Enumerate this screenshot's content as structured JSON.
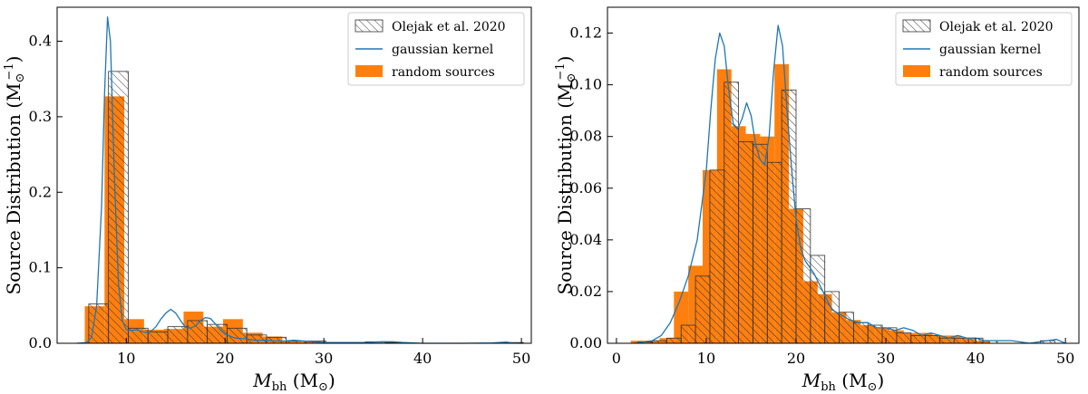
{
  "chart_data": [
    {
      "type": "bar",
      "ylabel": "Source Distribution (M",
      "ylabel_sup": "−1",
      "ylabel_sub": "⊙",
      "xlabel_main": "M",
      "xlabel_sub": "bh",
      "xlabel_unit": "(M",
      "xlabel_unit_sub": "⊙",
      "xlim": [
        3,
        51
      ],
      "ylim": [
        0,
        0.445
      ],
      "xticks": [
        10,
        20,
        30,
        40,
        50
      ],
      "yticks": [
        0.0,
        0.1,
        0.2,
        0.3,
        0.4
      ],
      "ytick_labels": [
        "0.0",
        "0.1",
        "0.2",
        "0.3",
        "0.4"
      ],
      "legend_position": "top-right",
      "legend": [
        "Olejak et al. 2020",
        "gaussian kernel",
        "random sources"
      ],
      "bin_width": 2.0,
      "random_sources": {
        "name": "random sources",
        "color": "#ff7f0e",
        "x_left": [
          5.8,
          7.8,
          9.8,
          11.8,
          13.8,
          15.8,
          17.8,
          19.8,
          21.8,
          23.8,
          25.8,
          27.8,
          29.8,
          33.8,
          35.8,
          47.8
        ],
        "values": [
          0.049,
          0.327,
          0.032,
          0.018,
          0.019,
          0.042,
          0.022,
          0.032,
          0.014,
          0.009,
          0.003,
          0.002,
          0.001,
          0.001,
          0.001,
          0.001
        ]
      },
      "olejak": {
        "name": "Olejak et al. 2020",
        "x_left": [
          6.2,
          8.2,
          10.2,
          12.2,
          14.2,
          16.2,
          18.2,
          20.2,
          22.2,
          24.2,
          26.2,
          28.2,
          32.2,
          34.2,
          36.2,
          48.2
        ],
        "values": [
          0.052,
          0.36,
          0.02,
          0.015,
          0.022,
          0.03,
          0.025,
          0.02,
          0.011,
          0.008,
          0.003,
          0.003,
          0.001,
          0.002,
          0.001,
          0.001
        ]
      },
      "kde": {
        "name": "gaussian kernel",
        "color": "#1f77b4",
        "x": [
          5,
          6,
          6.5,
          7,
          7.5,
          7.8,
          8.1,
          8.4,
          8.8,
          9.2,
          9.6,
          10,
          10.5,
          11,
          11.5,
          12,
          12.5,
          13,
          13.5,
          14,
          14.5,
          15,
          15.5,
          16,
          16.5,
          17,
          17.5,
          18,
          18.5,
          19,
          19.5,
          20,
          21,
          22,
          23,
          24,
          25,
          26,
          27,
          28,
          29,
          30,
          32,
          34,
          36,
          37,
          38,
          40,
          44,
          47,
          48.5,
          49,
          50
        ],
        "values": [
          0.0,
          0.001,
          0.008,
          0.05,
          0.18,
          0.33,
          0.432,
          0.4,
          0.22,
          0.08,
          0.03,
          0.018,
          0.017,
          0.018,
          0.016,
          0.014,
          0.016,
          0.022,
          0.032,
          0.04,
          0.045,
          0.04,
          0.03,
          0.021,
          0.02,
          0.023,
          0.03,
          0.034,
          0.033,
          0.026,
          0.018,
          0.012,
          0.007,
          0.006,
          0.004,
          0.004,
          0.003,
          0.003,
          0.004,
          0.003,
          0.002,
          0.001,
          0.001,
          0.001,
          0.002,
          0.002,
          0.001,
          0.0,
          0.0,
          0.0005,
          0.0015,
          0.0005,
          0.0
        ]
      }
    },
    {
      "type": "bar",
      "ylabel": "Source Distribution (M",
      "ylabel_sup": "−1",
      "ylabel_sub": "⊙",
      "xlabel_main": "M",
      "xlabel_sub": "bh",
      "xlabel_unit": "(M",
      "xlabel_unit_sub": "⊙",
      "xlim": [
        -1,
        51.5
      ],
      "ylim": [
        0,
        0.13
      ],
      "xticks": [
        0,
        10,
        20,
        30,
        40,
        50
      ],
      "yticks": [
        0.0,
        0.02,
        0.04,
        0.06,
        0.08,
        0.1,
        0.12
      ],
      "ytick_labels": [
        "0.00",
        "0.02",
        "0.04",
        "0.06",
        "0.08",
        "0.10",
        "0.12"
      ],
      "legend_position": "top-right",
      "legend": [
        "Olejak et al. 2020",
        "gaussian kernel",
        "random sources"
      ],
      "bin_width": 1.6,
      "random_sources": {
        "name": "random sources",
        "color": "#ff7f0e",
        "x_left": [
          1.6,
          3.2,
          4.8,
          6.4,
          8.0,
          9.6,
          11.2,
          12.8,
          14.4,
          16.0,
          17.6,
          19.2,
          20.8,
          22.4,
          24.0,
          25.6,
          27.2,
          28.8,
          30.4,
          32.0,
          33.6,
          35.2,
          36.8,
          38.4,
          40.0
        ],
        "values": [
          0.001,
          0.001,
          0.002,
          0.02,
          0.03,
          0.067,
          0.106,
          0.084,
          0.081,
          0.08,
          0.108,
          0.052,
          0.024,
          0.019,
          0.012,
          0.009,
          0.007,
          0.006,
          0.005,
          0.004,
          0.004,
          0.003,
          0.003,
          0.002,
          0.001
        ]
      },
      "olejak": {
        "name": "Olejak et al. 2020",
        "x_left": [
          2.4,
          4.0,
          5.6,
          7.2,
          8.8,
          10.4,
          12.0,
          13.6,
          15.2,
          16.8,
          18.4,
          20.0,
          21.6,
          23.2,
          24.8,
          26.4,
          28.0,
          29.6,
          31.2,
          32.8,
          34.4,
          36.0,
          37.6,
          39.2,
          40.8,
          47.2
        ],
        "values": [
          0.0005,
          0.001,
          0.002,
          0.007,
          0.026,
          0.067,
          0.101,
          0.078,
          0.077,
          0.07,
          0.098,
          0.052,
          0.034,
          0.02,
          0.012,
          0.008,
          0.007,
          0.006,
          0.004,
          0.003,
          0.003,
          0.002,
          0.002,
          0.002,
          0.001,
          0.001
        ]
      },
      "kde": {
        "name": "gaussian kernel",
        "color": "#1f77b4",
        "x": [
          2,
          4,
          5,
          6,
          7,
          8,
          9,
          10,
          10.5,
          11,
          11.5,
          12,
          12.5,
          13,
          13.5,
          14,
          14.5,
          15,
          15.5,
          16,
          16.5,
          17,
          17.5,
          18,
          18.5,
          19,
          19.5,
          20,
          20.5,
          21,
          22,
          23,
          24,
          25,
          26,
          27,
          28,
          29,
          30,
          31,
          32,
          33,
          34,
          35,
          36,
          37,
          38,
          39,
          40,
          41,
          42,
          44,
          46,
          48,
          49,
          50
        ],
        "values": [
          0.0,
          0.001,
          0.003,
          0.008,
          0.016,
          0.026,
          0.04,
          0.067,
          0.09,
          0.11,
          0.12,
          0.115,
          0.098,
          0.085,
          0.083,
          0.087,
          0.093,
          0.088,
          0.077,
          0.071,
          0.069,
          0.08,
          0.105,
          0.123,
          0.115,
          0.09,
          0.068,
          0.048,
          0.037,
          0.032,
          0.027,
          0.02,
          0.013,
          0.011,
          0.009,
          0.008,
          0.008,
          0.006,
          0.006,
          0.005,
          0.006,
          0.005,
          0.003,
          0.004,
          0.003,
          0.002,
          0.003,
          0.002,
          0.002,
          0.001,
          0.001,
          0.001,
          0.0,
          0.001,
          0.0015,
          0.0
        ]
      }
    }
  ]
}
